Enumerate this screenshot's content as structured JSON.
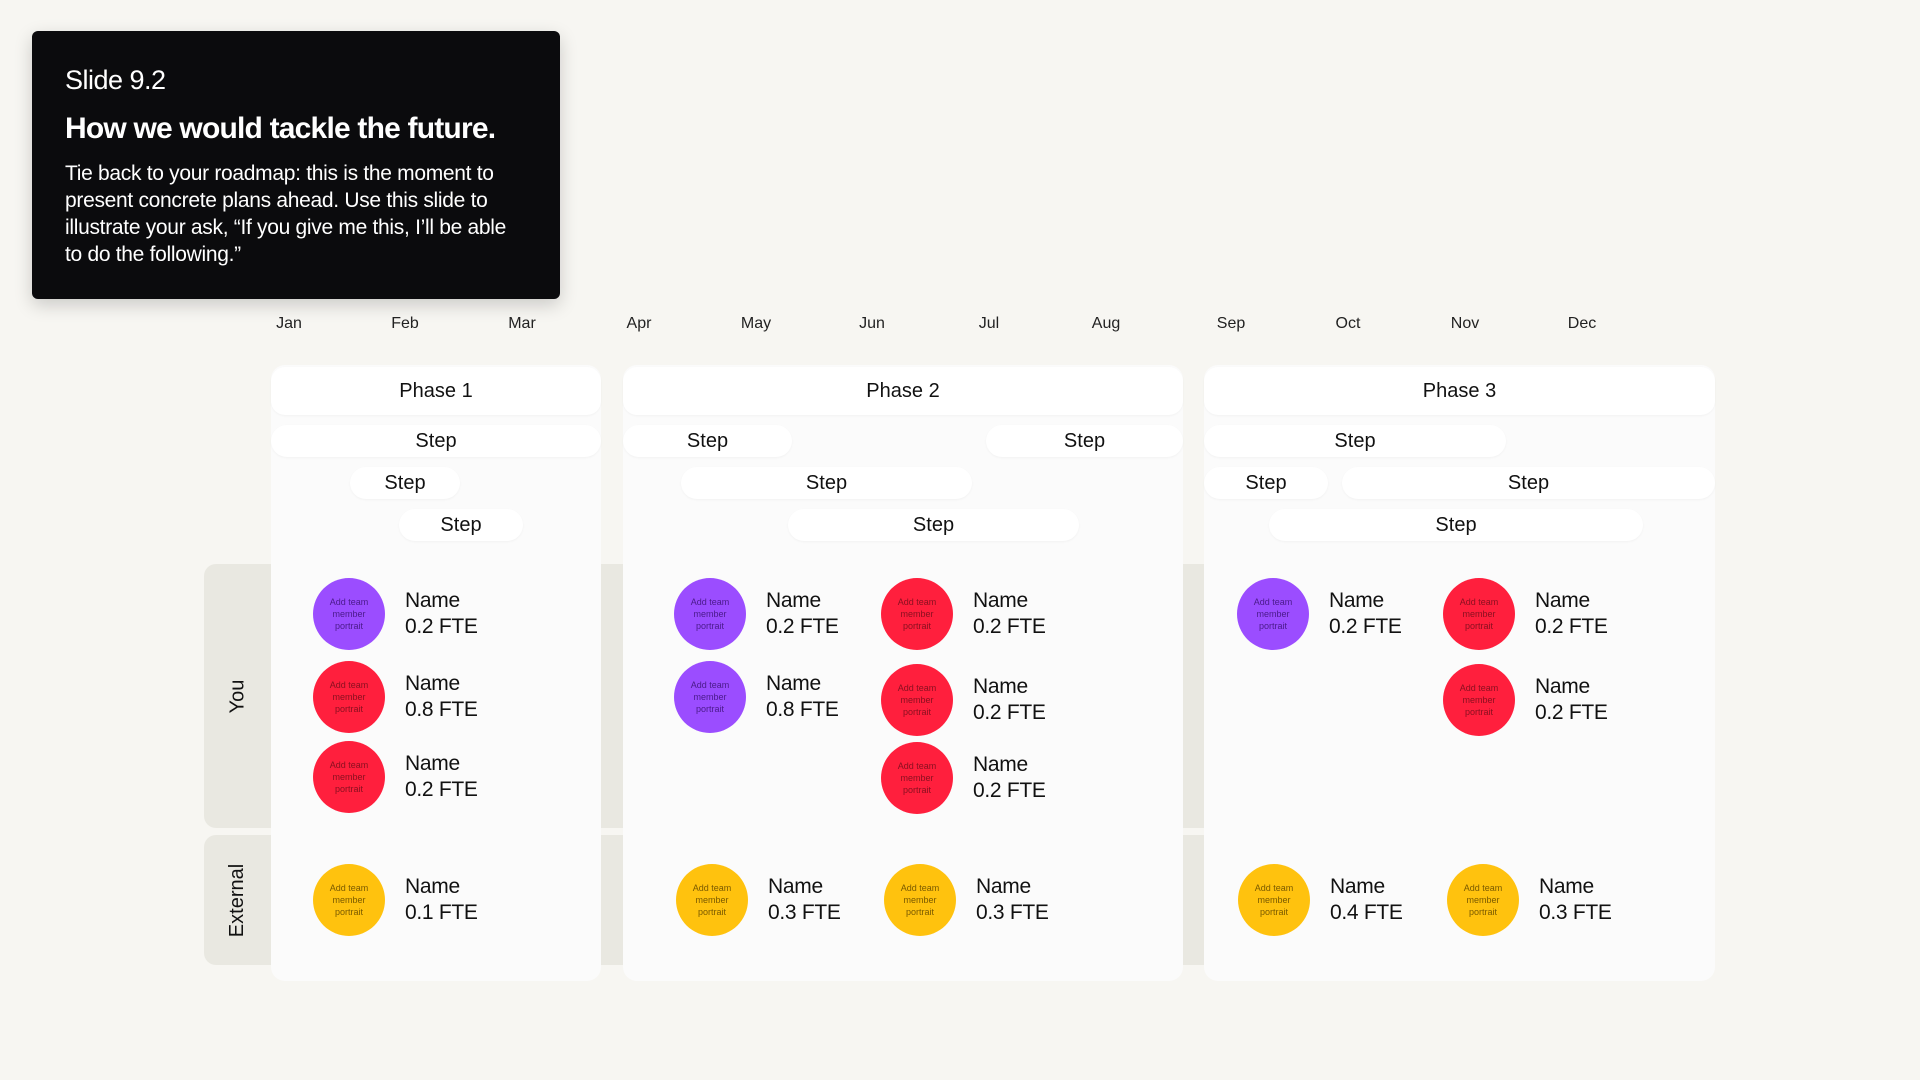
{
  "header": {
    "slide_number": "Slide 9.2",
    "title": "How we would tackle the future.",
    "body": "Tie back to your roadmap: this is the moment to present concrete plans ahead. Use this slide to illustrate your ask, “If you give me this, I’ll be able to do the following.”"
  },
  "months": [
    "Jan",
    "Feb",
    "Mar",
    "Apr",
    "May",
    "Jun",
    "Jul",
    "Aug",
    "Sep",
    "Oct",
    "Nov",
    "Dec"
  ],
  "phases": [
    "Phase 1",
    "Phase 2",
    "Phase 3"
  ],
  "step_label": "Step",
  "lanes": {
    "you": "You",
    "external": "External"
  },
  "portrait_placeholder": "Add team member portrait",
  "members": {
    "m1": {
      "name": "Name",
      "fte": "0.2 FTE"
    },
    "m2": {
      "name": "Name",
      "fte": "0.8 FTE"
    },
    "m3": {
      "name": "Name",
      "fte": "0.2 FTE"
    },
    "m4": {
      "name": "Name",
      "fte": "0.2 FTE"
    },
    "m5": {
      "name": "Name",
      "fte": "0.8 FTE"
    },
    "m6": {
      "name": "Name",
      "fte": "0.2 FTE"
    },
    "m7": {
      "name": "Name",
      "fte": "0.2 FTE"
    },
    "m8": {
      "name": "Name",
      "fte": "0.2 FTE"
    },
    "m9": {
      "name": "Name",
      "fte": "0.2 FTE"
    },
    "m10": {
      "name": "Name",
      "fte": "0.2 FTE"
    },
    "m11": {
      "name": "Name",
      "fte": "0.2 FTE"
    },
    "e1": {
      "name": "Name",
      "fte": "0.1 FTE"
    },
    "e2": {
      "name": "Name",
      "fte": "0.3 FTE"
    },
    "e3": {
      "name": "Name",
      "fte": "0.3 FTE"
    },
    "e4": {
      "name": "Name",
      "fte": "0.4 FTE"
    },
    "e5": {
      "name": "Name",
      "fte": "0.3 FTE"
    }
  },
  "colors": {
    "purple": "#9b4dff",
    "red": "#ff1f3d",
    "yellow": "#ffc20e",
    "card_bg": "#0b0b0d",
    "page_bg": "#f7f6f2"
  }
}
